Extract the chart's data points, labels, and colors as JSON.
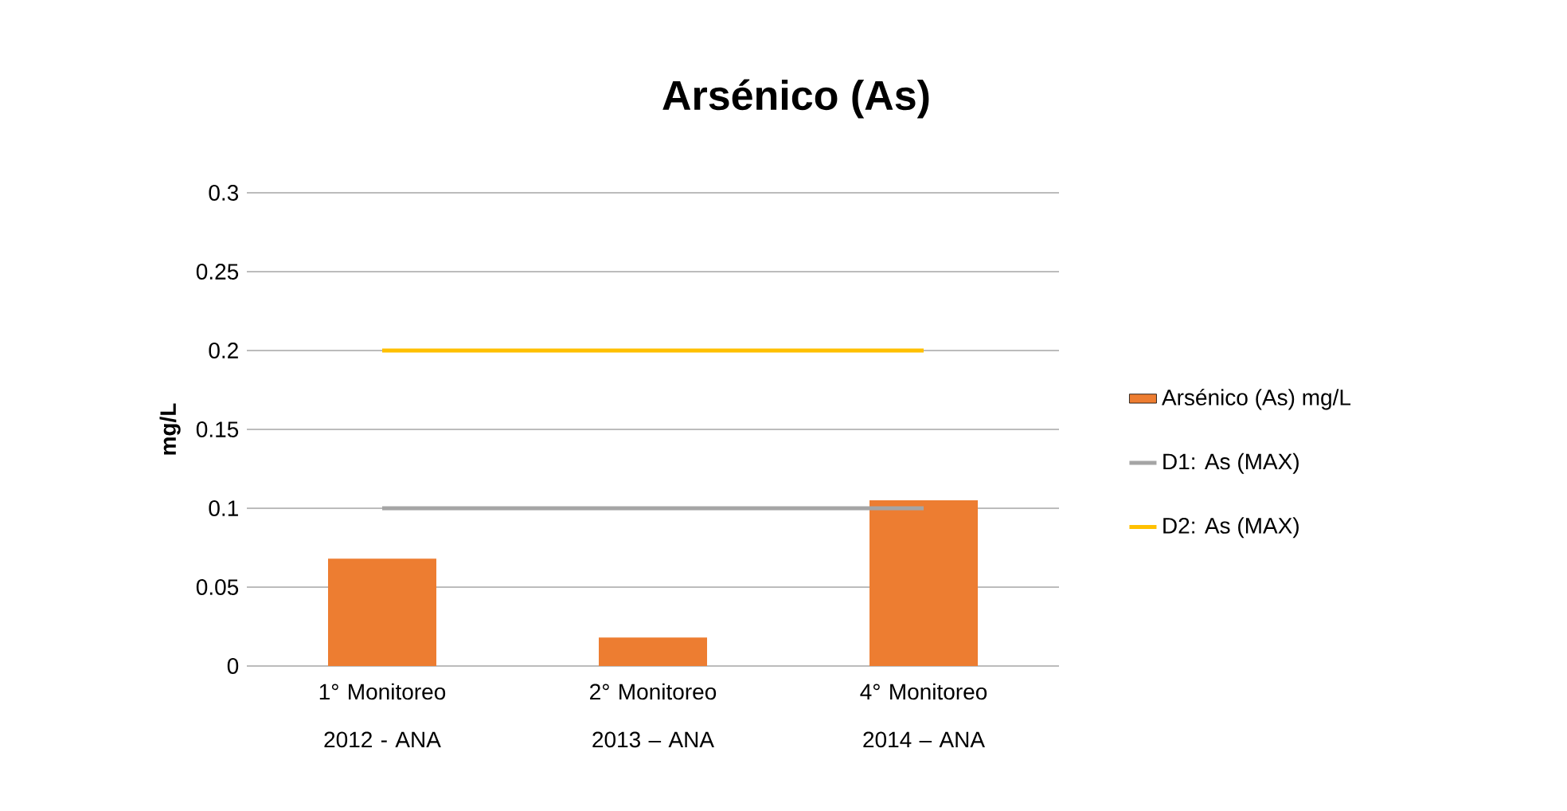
{
  "chart_data": {
    "type": "bar",
    "title": "Arsénico (As)",
    "ylabel": "mg/L",
    "categories": [
      "1° Monitoreo 2012 - ANA",
      "2° Monitoreo 2013 – ANA",
      "4° Monitoreo 2014 – ANA"
    ],
    "series": [
      {
        "name": "Arsénico (As) mg/L",
        "color": "#ed7d31",
        "values": [
          0.068,
          0.018,
          0.105
        ]
      },
      {
        "name": "D1: As (MAX)",
        "type": "line",
        "color": "#a5a5a5",
        "values": [
          0.1,
          0.1,
          0.1
        ]
      },
      {
        "name": "D2: As (MAX)",
        "type": "line",
        "color": "#ffc000",
        "values": [
          0.2,
          0.2,
          0.2
        ]
      }
    ],
    "ylim": [
      0,
      0.3
    ],
    "yticks": [
      0,
      0.05,
      0.1,
      0.15,
      0.2,
      0.25,
      0.3
    ],
    "grid": "y",
    "legend": "right"
  }
}
